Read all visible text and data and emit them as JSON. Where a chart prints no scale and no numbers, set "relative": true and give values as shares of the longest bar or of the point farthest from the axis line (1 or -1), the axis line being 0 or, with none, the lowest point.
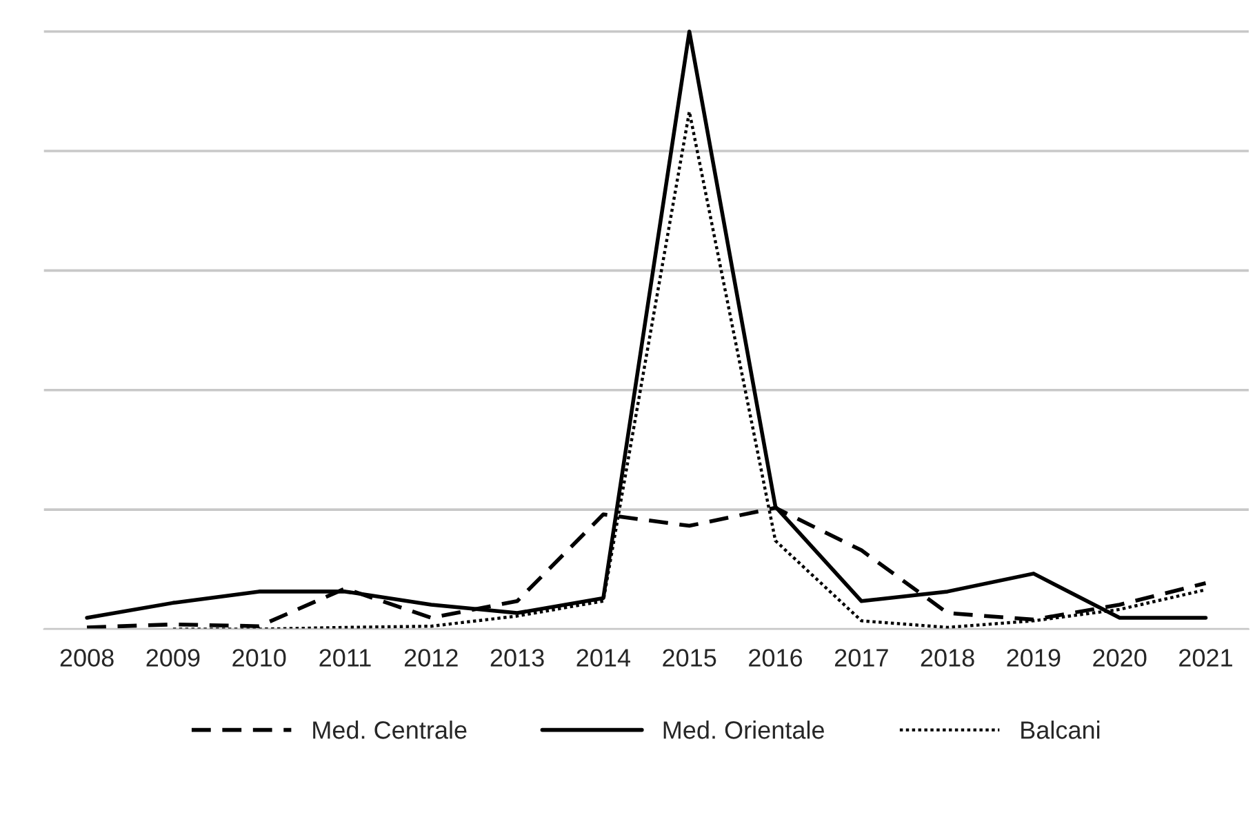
{
  "chart_data": {
    "type": "line",
    "relative": true,
    "categories": [
      "2008",
      "2009",
      "2010",
      "2011",
      "2012",
      "2013",
      "2014",
      "2015",
      "2016",
      "2017",
      "2018",
      "2019",
      "2020",
      "2021"
    ],
    "series": [
      {
        "name": "Med. Centrale",
        "color": "#000000",
        "line_style": "dashed",
        "values": [
          0.003,
          0.008,
          0.005,
          0.068,
          0.019,
          0.047,
          0.192,
          0.173,
          0.203,
          0.132,
          0.027,
          0.016,
          0.041,
          0.077
        ]
      },
      {
        "name": "Med. Orientale",
        "color": "#000000",
        "line_style": "solid",
        "values": [
          0.019,
          0.044,
          0.063,
          0.063,
          0.041,
          0.027,
          0.052,
          1,
          0.205,
          0.047,
          0.063,
          0.093,
          0.019,
          0.019
        ]
      },
      {
        "name": "Balcani",
        "color": "#000000",
        "line_style": "dotted",
        "values": [
          null,
          0,
          0,
          0.003,
          0.005,
          0.022,
          0.047,
          0.866,
          0.148,
          0.014,
          0.003,
          0.014,
          0.033,
          0.066
        ]
      }
    ],
    "grid": "y",
    "legend": "bottom",
    "marker": "none"
  }
}
